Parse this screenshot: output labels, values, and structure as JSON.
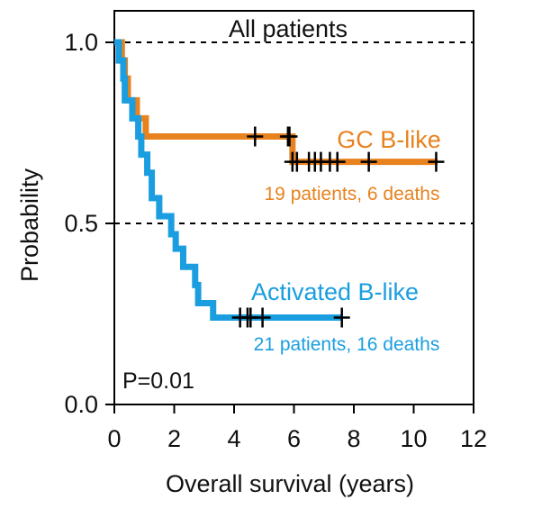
{
  "chart_data": {
    "type": "line",
    "subtype": "kaplan-meier",
    "title": "All patients",
    "xlabel": "Overall survival (years)",
    "ylabel": "Probability",
    "xlim": [
      0,
      12
    ],
    "ylim": [
      0,
      1.1
    ],
    "x_ticks": [
      "0",
      "2",
      "4",
      "6",
      "8",
      "10",
      "12"
    ],
    "y_ticks": [
      "0.0",
      "0.5",
      "1.0"
    ],
    "reference_lines": [
      1.0,
      0.5
    ],
    "annotation": "P=0.01",
    "series": [
      {
        "name": "GC B-like",
        "subtitle": "19 patients, 6 deaths",
        "color": "#E8821E",
        "steps": [
          [
            0,
            1.0
          ],
          [
            0.25,
            0.95
          ],
          [
            0.35,
            0.9
          ],
          [
            0.45,
            0.84
          ],
          [
            0.75,
            0.79
          ],
          [
            1.05,
            0.74
          ],
          [
            5.95,
            0.67
          ],
          [
            10.8,
            0.67
          ]
        ],
        "censored": [
          4.7,
          5.8,
          5.85,
          5.95,
          6.1,
          6.5,
          6.7,
          6.9,
          7.2,
          7.45,
          8.5,
          10.75
        ]
      },
      {
        "name": "Activated B-like",
        "subtitle": "21 patients, 16 deaths",
        "color": "#1A9EE0",
        "steps": [
          [
            0,
            1.0
          ],
          [
            0.15,
            0.95
          ],
          [
            0.3,
            0.9
          ],
          [
            0.35,
            0.84
          ],
          [
            0.6,
            0.79
          ],
          [
            0.8,
            0.74
          ],
          [
            0.9,
            0.69
          ],
          [
            1.1,
            0.64
          ],
          [
            1.25,
            0.57
          ],
          [
            1.5,
            0.52
          ],
          [
            1.9,
            0.47
          ],
          [
            2.05,
            0.43
          ],
          [
            2.3,
            0.38
          ],
          [
            2.7,
            0.33
          ],
          [
            2.8,
            0.28
          ],
          [
            3.3,
            0.24
          ],
          [
            7.6,
            0.24
          ]
        ],
        "censored": [
          4.2,
          4.45,
          4.55,
          4.95,
          7.6
        ]
      }
    ]
  }
}
